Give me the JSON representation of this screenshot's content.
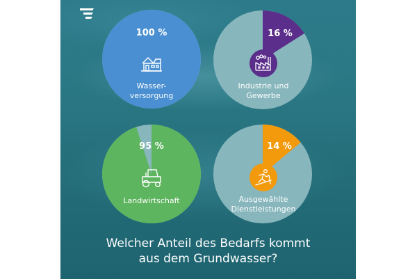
{
  "question": {
    "line1": "Welcher Anteil des Bedarfs kommt",
    "line2": "aus dem Grundwasser?"
  },
  "chart_data": [
    {
      "type": "pie",
      "slices": [
        {
          "label": "Wasserversorgung",
          "value": 100
        }
      ],
      "display": "100 %",
      "label_line1": "Wasser-",
      "label_line2": "versorgung",
      "icon": "house-icon",
      "color": "#4a8fd1"
    },
    {
      "type": "pie",
      "slices": [
        {
          "label": "Industrie und Gewerbe",
          "value": 16
        }
      ],
      "display": "16 %",
      "label_line1": "Industrie und",
      "label_line2": "Gewerbe",
      "icon": "factory-icon",
      "color": "#5a2e8a"
    },
    {
      "type": "pie",
      "slices": [
        {
          "label": "Landwirtschaft",
          "value": 95
        }
      ],
      "display": "95 %",
      "label_line1": "Landwirtschaft",
      "label_line2": "",
      "icon": "tractor-icon",
      "color": "#5eb55f"
    },
    {
      "type": "pie",
      "slices": [
        {
          "label": "Ausgewählte Dienstleistungen",
          "value": 14
        }
      ],
      "display": "14 %",
      "label_line1": "Ausgewählte",
      "label_line2": "Dienstleistungen",
      "icon": "skier-icon",
      "color": "#f29a0c"
    }
  ],
  "colors": {
    "remainder": "#87b6bc",
    "icon_badge_industry": "#5a2e8a",
    "icon_badge_services": "#f29a0c"
  }
}
